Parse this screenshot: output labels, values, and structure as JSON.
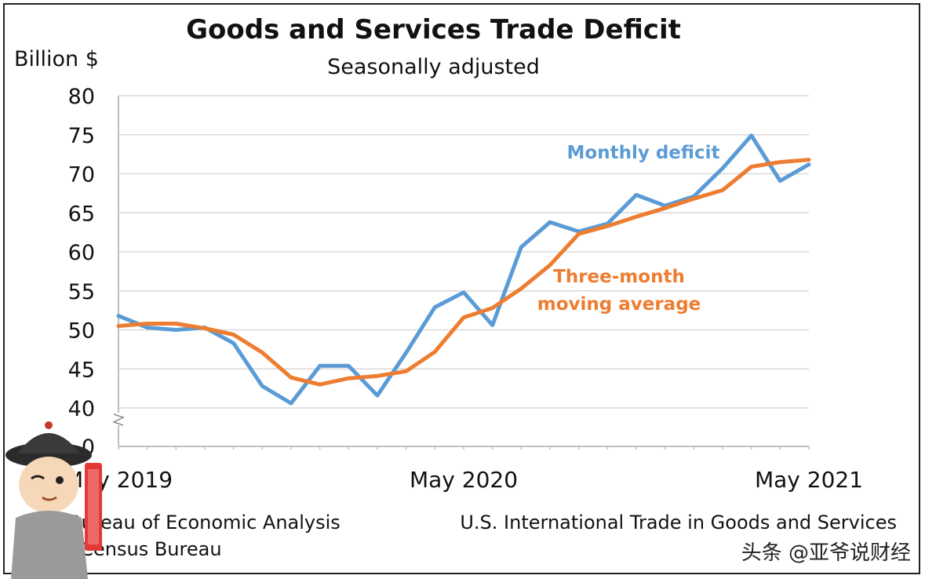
{
  "title": "Goods and Services Trade Deficit",
  "subtitle": "Seasonally adjusted",
  "unit_label": "Billion $",
  "source": {
    "line1": "Bureau of Economic Analysis",
    "line2": ". Census Bureau",
    "right": "U.S. International Trade in Goods and Services"
  },
  "watermark": "头条 @亚爷说财经",
  "chart_data": {
    "type": "line",
    "title": "Goods and Services Trade Deficit",
    "subtitle": "Seasonally adjusted",
    "ylabel": "Billion $",
    "ylim": [
      40,
      80
    ],
    "y_axis_break": true,
    "y_ticks": [
      "80",
      "75",
      "70",
      "65",
      "60",
      "55",
      "50",
      "45",
      "40",
      "0"
    ],
    "x_ticks": [
      "May 2019",
      "May 2020",
      "May 2021"
    ],
    "x": [
      "2019-05",
      "2019-06",
      "2019-07",
      "2019-08",
      "2019-09",
      "2019-10",
      "2019-11",
      "2019-12",
      "2020-01",
      "2020-02",
      "2020-03",
      "2020-04",
      "2020-05",
      "2020-06",
      "2020-07",
      "2020-08",
      "2020-09",
      "2020-10",
      "2020-11",
      "2020-12",
      "2021-01",
      "2021-02",
      "2021-03",
      "2021-04",
      "2021-05"
    ],
    "grid": true,
    "series": [
      {
        "name": "Monthly deficit",
        "color": "#5b9bd5",
        "values": [
          51.8,
          50.3,
          50.0,
          50.3,
          48.3,
          42.8,
          40.6,
          45.4,
          45.4,
          41.6,
          47.1,
          52.9,
          54.8,
          50.6,
          60.6,
          63.8,
          62.6,
          63.6,
          67.3,
          65.9,
          67.1,
          70.7,
          74.9,
          69.1,
          71.2
        ]
      },
      {
        "name": "Three-month moving average",
        "label_lines": [
          "Three-month",
          "moving average"
        ],
        "color": "#ed7d31",
        "values": [
          50.5,
          50.8,
          50.8,
          50.2,
          49.4,
          47.1,
          43.9,
          43.0,
          43.8,
          44.1,
          44.7,
          47.2,
          51.6,
          52.8,
          55.3,
          58.3,
          62.3,
          63.3,
          64.5,
          65.6,
          66.8,
          67.9,
          70.9,
          71.5,
          71.8
        ]
      }
    ]
  }
}
